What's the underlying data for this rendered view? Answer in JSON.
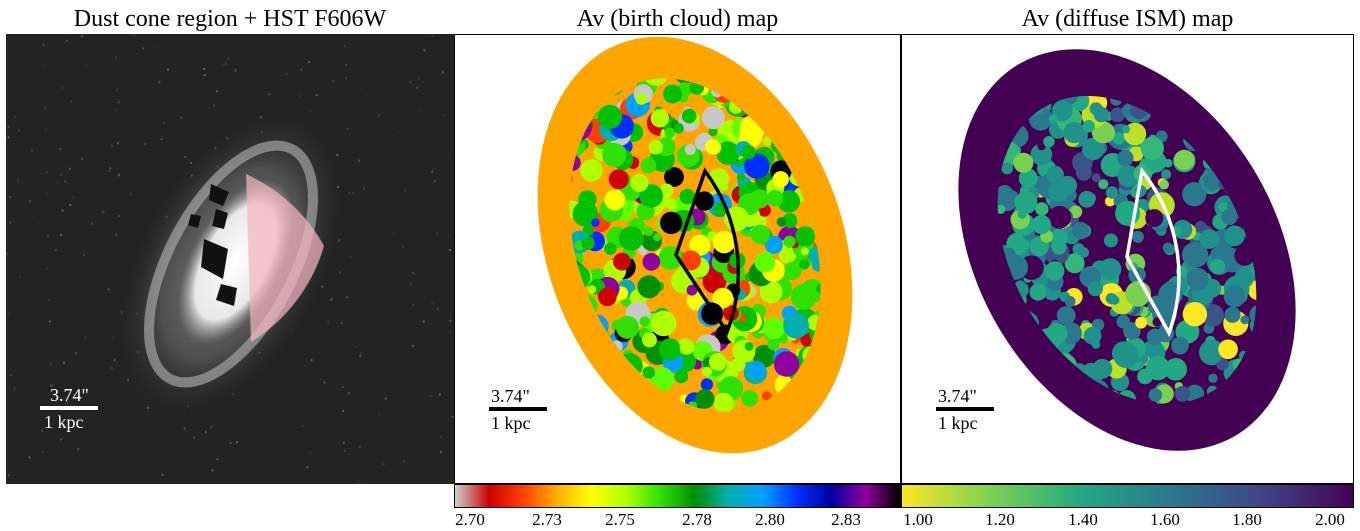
{
  "panels": [
    {
      "title": "Dust cone region + HST F606W",
      "scale_arcsec": "3.74\"",
      "scale_kpc": "1 kpc"
    },
    {
      "title": "Av (birth cloud) map",
      "scale_arcsec": "3.74\"",
      "scale_kpc": "1 kpc"
    },
    {
      "title": "Av (diffuse ISM) map",
      "scale_arcsec": "3.74\"",
      "scale_kpc": "1 kpc"
    }
  ],
  "colorbar_birth_cloud": {
    "ticks": [
      "2.70",
      "2.73",
      "2.75",
      "2.78",
      "2.80",
      "2.83"
    ],
    "colors": [
      "#cfcfcf",
      "#d00000",
      "#ff4000",
      "#ffb000",
      "#ffff00",
      "#b0ff00",
      "#30e000",
      "#009000",
      "#00b0b0",
      "#00a0ff",
      "#0030ff",
      "#0000a0",
      "#9000a0",
      "#000000"
    ]
  },
  "colorbar_diffuse_ism": {
    "ticks": [
      "1.00",
      "1.20",
      "1.40",
      "1.60",
      "1.80",
      "2.00"
    ],
    "colors": [
      "#fde725",
      "#7ad151",
      "#22a884",
      "#2a788e",
      "#414487",
      "#440154"
    ]
  },
  "colors": {
    "birth_cloud_background": "#ffa500",
    "diffuse_background": "#440154",
    "cone_overlay": "#f4b6c2"
  }
}
